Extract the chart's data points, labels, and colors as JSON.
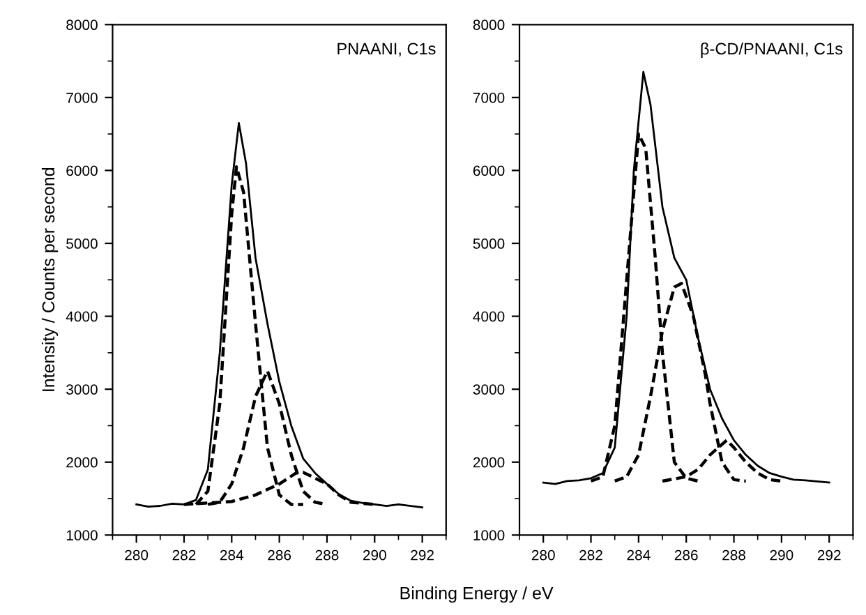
{
  "chart_data": [
    {
      "type": "line",
      "xlabel": "Binding Energy / eV",
      "ylabel": "Intensity / Counts per second",
      "annotations": [
        "PNAANI, C1s"
      ],
      "xlim": [
        279,
        293
      ],
      "ylim": [
        1000,
        8000
      ],
      "xticks": [
        280,
        282,
        284,
        286,
        288,
        290,
        292
      ],
      "yticks": [
        1000,
        2000,
        3000,
        4000,
        5000,
        6000,
        7000,
        8000
      ],
      "grid": false,
      "legend": false,
      "marker": "none",
      "series": [
        {
          "color": "#000000",
          "line_style": "solid",
          "x": [
            280,
            280.5,
            281,
            281.5,
            282,
            282.5,
            283,
            283.5,
            284,
            284.3,
            284.6,
            285,
            285.5,
            286,
            286.5,
            287,
            287.5,
            288,
            288.5,
            289,
            289.5,
            290,
            290.5,
            291,
            292
          ],
          "values": [
            1420,
            1390,
            1400,
            1430,
            1420,
            1480,
            1900,
            3500,
            5800,
            6650,
            6100,
            4800,
            3900,
            3100,
            2500,
            2050,
            1850,
            1700,
            1560,
            1470,
            1440,
            1420,
            1400,
            1420,
            1380
          ]
        },
        {
          "color": "#000000",
          "line_style": "dashed",
          "x": [
            282.5,
            283,
            283.5,
            284,
            284.2,
            284.5,
            285,
            285.5,
            286,
            286.5,
            287
          ],
          "values": [
            1420,
            1600,
            2800,
            5400,
            6050,
            5700,
            3900,
            2200,
            1550,
            1420,
            1420
          ]
        },
        {
          "color": "#000000",
          "line_style": "dashed",
          "x": [
            283,
            283.5,
            284,
            284.5,
            285,
            285.5,
            286,
            286.5,
            287,
            287.5,
            288
          ],
          "values": [
            1420,
            1450,
            1700,
            2200,
            2900,
            3250,
            2800,
            2100,
            1600,
            1450,
            1420
          ]
        },
        {
          "color": "#000000",
          "line_style": "dashed",
          "x": [
            282,
            284,
            285,
            286,
            286.7,
            287,
            288,
            288.5,
            289,
            290
          ],
          "values": [
            1420,
            1460,
            1550,
            1700,
            1850,
            1860,
            1700,
            1550,
            1450,
            1420
          ]
        }
      ]
    },
    {
      "type": "line",
      "annotations": [
        "β-CD/PNAANI, C1s"
      ],
      "xlim": [
        279,
        293
      ],
      "ylim": [
        1000,
        8000
      ],
      "xticks": [
        280,
        282,
        284,
        286,
        288,
        290,
        292
      ],
      "yticks": [
        1000,
        2000,
        3000,
        4000,
        5000,
        6000,
        7000,
        8000
      ],
      "grid": false,
      "legend": false,
      "marker": "none",
      "series": [
        {
          "color": "#000000",
          "line_style": "solid",
          "x": [
            280,
            280.5,
            281,
            281.5,
            282,
            282.5,
            283,
            283.5,
            283.8,
            284.2,
            284.5,
            285,
            285.5,
            286,
            286.5,
            287,
            287.5,
            288,
            288.5,
            289,
            289.5,
            290,
            290.5,
            291,
            292
          ],
          "values": [
            1720,
            1700,
            1740,
            1750,
            1780,
            1850,
            2200,
            4000,
            6000,
            7350,
            6900,
            5500,
            4800,
            4500,
            3700,
            3000,
            2600,
            2300,
            2100,
            1950,
            1850,
            1800,
            1760,
            1750,
            1720
          ]
        },
        {
          "color": "#000000",
          "line_style": "dashed",
          "x": [
            282,
            282.5,
            283,
            283.5,
            284,
            284.3,
            284.7,
            285,
            285.5,
            286,
            286.5
          ],
          "values": [
            1740,
            1800,
            2500,
            4500,
            6500,
            6300,
            4800,
            3500,
            2000,
            1780,
            1740
          ]
        },
        {
          "color": "#000000",
          "line_style": "dashed",
          "x": [
            283,
            283.5,
            284,
            284.5,
            285,
            285.5,
            285.8,
            286.3,
            286.8,
            287,
            287.5,
            288,
            288.5
          ],
          "values": [
            1740,
            1800,
            2100,
            2900,
            3800,
            4400,
            4450,
            4000,
            3200,
            2800,
            2000,
            1760,
            1740
          ]
        },
        {
          "color": "#000000",
          "line_style": "dashed",
          "x": [
            285,
            286,
            286.5,
            287,
            287.7,
            288,
            288.5,
            289,
            289.5,
            290
          ],
          "values": [
            1740,
            1800,
            1900,
            2100,
            2300,
            2200,
            2000,
            1850,
            1760,
            1740
          ]
        }
      ]
    }
  ]
}
